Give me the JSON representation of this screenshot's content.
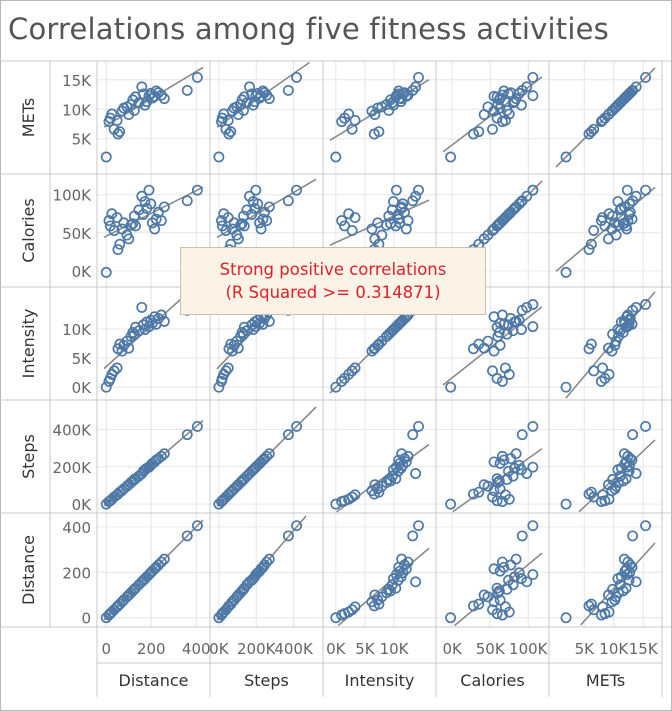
{
  "title": "Correlations among five fitness activities",
  "annotation": {
    "line1": "Strong positive correlations",
    "line2": "(R Squared >= 0.314871)"
  },
  "colors": {
    "marker": "#4e79a7",
    "trend": "#8a8a8a",
    "grid": "#e6e6e6",
    "annotation_text": "#e0202a"
  },
  "chart_data": {
    "type": "scatter",
    "matrix_type": "scatter-plot-matrix",
    "row_variables": [
      "METs",
      "Calories",
      "Intensity",
      "Steps",
      "Distance"
    ],
    "column_variables": [
      "Distance",
      "Steps",
      "Intensity",
      "Calories",
      "METs"
    ],
    "trend_lines": true,
    "grid": true,
    "axes": {
      "Distance": {
        "range": [
          -10,
          430
        ],
        "ticks": [
          {
            "v": 0,
            "label": "0"
          },
          {
            "v": 200,
            "label": "200"
          },
          {
            "v": 400,
            "label": "400"
          }
        ]
      },
      "Steps": {
        "range": [
          -10000,
          520000
        ],
        "ticks": [
          {
            "v": 0,
            "label": "0K"
          },
          {
            "v": 200000,
            "label": "200K"
          },
          {
            "v": 400000,
            "label": "400K"
          }
        ]
      },
      "Intensity": {
        "range": [
          -1000,
          16000
        ],
        "ticks": [
          {
            "v": 0,
            "label": "0K"
          },
          {
            "v": 5000,
            "label": "5K"
          },
          {
            "v": 10000,
            "label": "10K"
          }
        ]
      },
      "Calories": {
        "range": [
          -12000,
          118000
        ],
        "ticks": [
          {
            "v": 0,
            "label": "0K"
          },
          {
            "v": 50000,
            "label": "50K"
          },
          {
            "v": 100000,
            "label": "100K"
          }
        ]
      },
      "METs": {
        "range": [
          200,
          17000
        ],
        "ticks": [
          {
            "v": 5000,
            "label": "5K"
          },
          {
            "v": 10000,
            "label": "10K"
          },
          {
            "v": 15000,
            "label": "15K"
          }
        ]
      }
    },
    "records": [
      {
        "Distance": 0,
        "Steps": 0,
        "Intensity": 0,
        "Calories": -2000,
        "METs": 1900
      },
      {
        "Distance": 12,
        "Steps": 14000,
        "Intensity": 1000,
        "Calories": 66000,
        "METs": 7900
      },
      {
        "Distance": 18,
        "Steps": 18000,
        "Intensity": 1500,
        "Calories": 59000,
        "METs": 8500
      },
      {
        "Distance": 25,
        "Steps": 26000,
        "Intensity": 2200,
        "Calories": 75000,
        "METs": 9200
      },
      {
        "Distance": 35,
        "Steps": 38000,
        "Intensity": 2800,
        "Calories": 53000,
        "METs": 6600
      },
      {
        "Distance": 48,
        "Steps": 50000,
        "Intensity": 3300,
        "Calories": 70000,
        "METs": 8100
      },
      {
        "Distance": 52,
        "Steps": 54000,
        "Intensity": 6600,
        "Calories": 28000,
        "METs": 5800
      },
      {
        "Distance": 60,
        "Steps": 64000,
        "Intensity": 7400,
        "Calories": 35000,
        "METs": 6200
      },
      {
        "Distance": 70,
        "Steps": 72000,
        "Intensity": 6200,
        "Calories": 55000,
        "METs": 9700
      },
      {
        "Distance": 78,
        "Steps": 82000,
        "Intensity": 7200,
        "Calories": 63000,
        "METs": 10200
      },
      {
        "Distance": 92,
        "Steps": 96000,
        "Intensity": 7900,
        "Calories": 47000,
        "METs": 10400
      },
      {
        "Distance": 100,
        "Steps": 104000,
        "Intensity": 6700,
        "Calories": 42000,
        "METs": 9100
      },
      {
        "Distance": 110,
        "Steps": 116000,
        "Intensity": 8700,
        "Calories": 60000,
        "METs": 10800
      },
      {
        "Distance": 118,
        "Steps": 124000,
        "Intensity": 9400,
        "Calories": 62000,
        "METs": 11600
      },
      {
        "Distance": 125,
        "Steps": 132000,
        "Intensity": 9100,
        "Calories": 72000,
        "METs": 9800
      },
      {
        "Distance": 130,
        "Steps": 136000,
        "Intensity": 10300,
        "Calories": 59000,
        "METs": 12100
      },
      {
        "Distance": 145,
        "Steps": 150000,
        "Intensity": 9700,
        "Calories": 80000,
        "METs": 11100
      },
      {
        "Distance": 158,
        "Steps": 164000,
        "Intensity": 13700,
        "Calories": 98000,
        "METs": 13800
      },
      {
        "Distance": 165,
        "Steps": 176000,
        "Intensity": 10700,
        "Calories": 74000,
        "METs": 12600
      },
      {
        "Distance": 172,
        "Steps": 184000,
        "Intensity": 9900,
        "Calories": 91000,
        "METs": 10700
      },
      {
        "Distance": 180,
        "Steps": 192000,
        "Intensity": 11200,
        "Calories": 82000,
        "METs": 11300
      },
      {
        "Distance": 190,
        "Steps": 198000,
        "Intensity": 10400,
        "Calories": 106000,
        "METs": 12300
      },
      {
        "Distance": 198,
        "Steps": 208000,
        "Intensity": 11500,
        "Calories": 88000,
        "METs": 12700
      },
      {
        "Distance": 205,
        "Steps": 218000,
        "Intensity": 11000,
        "Calories": 63000,
        "METs": 11900
      },
      {
        "Distance": 215,
        "Steps": 226000,
        "Intensity": 12100,
        "Calories": 55000,
        "METs": 12200
      },
      {
        "Distance": 222,
        "Steps": 236000,
        "Intensity": 10800,
        "Calories": 68000,
        "METs": 13100
      },
      {
        "Distance": 232,
        "Steps": 244000,
        "Intensity": 11800,
        "Calories": 77000,
        "METs": 12800
      },
      {
        "Distance": 245,
        "Steps": 256000,
        "Intensity": 12400,
        "Calories": 66000,
        "METs": 12400
      },
      {
        "Distance": 258,
        "Steps": 270000,
        "Intensity": 11300,
        "Calories": 84000,
        "METs": 11800
      },
      {
        "Distance": 360,
        "Steps": 372000,
        "Intensity": 13200,
        "Calories": 92000,
        "METs": 13200
      },
      {
        "Distance": 405,
        "Steps": 416000,
        "Intensity": 14200,
        "Calories": 106000,
        "METs": 15400
      }
    ]
  }
}
